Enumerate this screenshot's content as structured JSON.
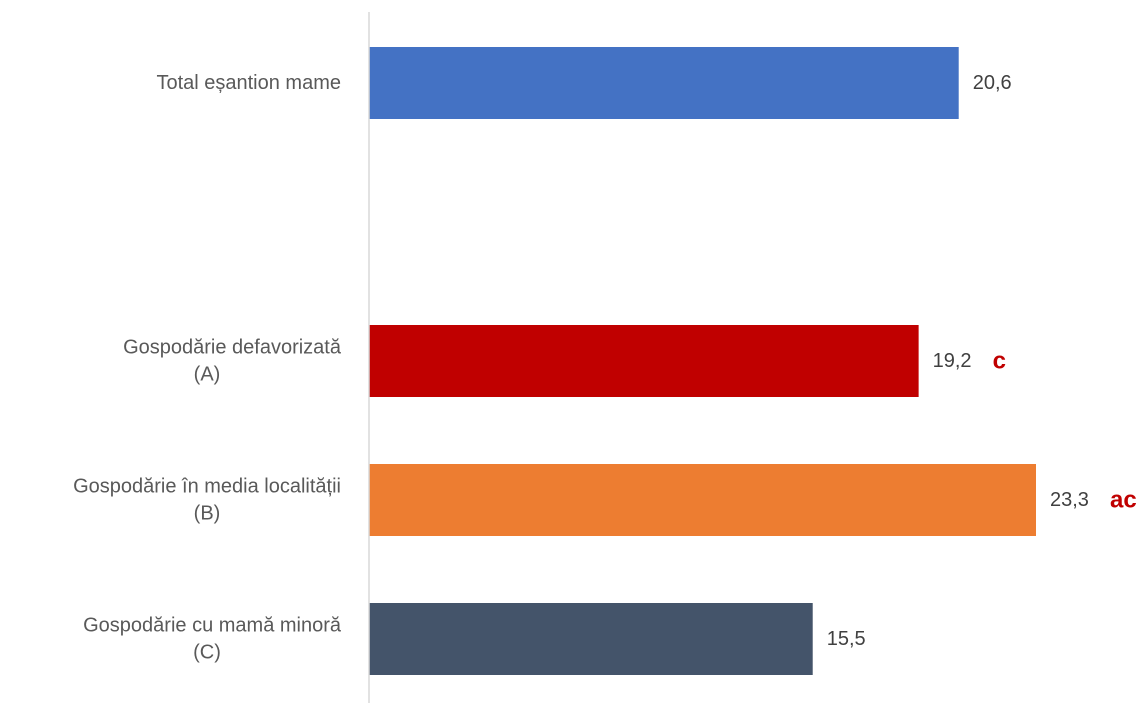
{
  "chart_data": {
    "type": "bar",
    "orientation": "horizontal",
    "categories": [
      [
        "Total eșantion mame"
      ],
      [
        "Gospodărie defavorizată",
        "(A)"
      ],
      [
        "Gospodărie în media localității",
        "(B)"
      ],
      [
        "Gospodărie cu mamă minoră",
        "(C)"
      ]
    ],
    "values": [
      20.6,
      19.2,
      23.3,
      15.5
    ],
    "value_labels": [
      "20,6",
      "19,2",
      "23,3",
      "15,5"
    ],
    "significance_labels": [
      "",
      "c",
      "ac",
      ""
    ],
    "bar_colors": [
      "#4472C4",
      "#C00000",
      "#ED7D31",
      "#44546A"
    ],
    "significance_color": "#C00000",
    "xlim": [
      0,
      24
    ],
    "title": "",
    "xlabel": "",
    "ylabel": "",
    "grid": false,
    "legend": "none"
  }
}
